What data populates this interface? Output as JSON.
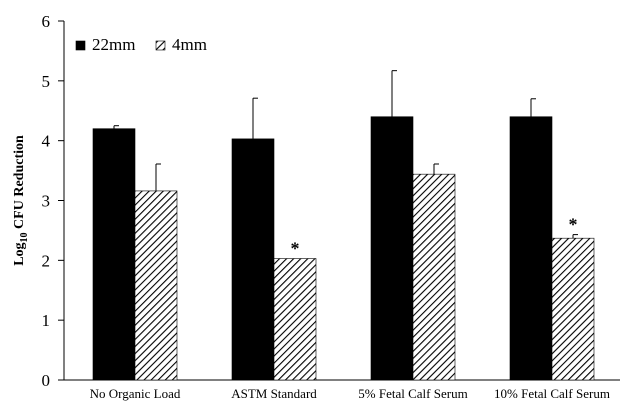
{
  "chart_data": {
    "type": "bar",
    "title": "",
    "xlabel": "",
    "ylabel": {
      "prefix": "Log",
      "subscript": "10",
      "suffix": " CFU Reduction"
    },
    "ylim": [
      0,
      6
    ],
    "yticks": [
      "0",
      "1",
      "2",
      "3",
      "4",
      "5",
      "6"
    ],
    "grid": false,
    "legend_position": "top-left",
    "categories": [
      "No Organic Load",
      "ASTM Standard",
      "5% Fetal Calf Serum",
      "10% Fetal Calf Serum"
    ],
    "series": [
      {
        "name": "22mm",
        "fill": "solid",
        "color": "#000000",
        "values": [
          4.2,
          4.03,
          4.4,
          4.4
        ],
        "error": [
          0.05,
          0.68,
          0.77,
          0.3
        ]
      },
      {
        "name": "4mm",
        "fill": "diagonal-hatch",
        "color": "#000000",
        "values": [
          3.16,
          2.03,
          3.44,
          2.37
        ],
        "error": [
          0.45,
          0.0,
          0.17,
          0.06
        ]
      }
    ],
    "annotations": [
      {
        "category": "ASTM Standard",
        "series": "4mm",
        "text": "*"
      },
      {
        "category": "10% Fetal Calf Serum",
        "series": "4mm",
        "text": "*"
      }
    ]
  }
}
